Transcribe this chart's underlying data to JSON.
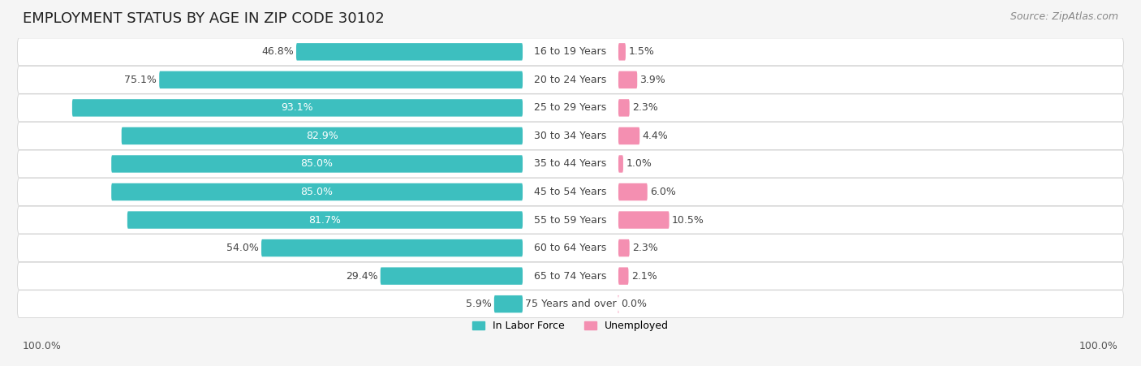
{
  "title": "EMPLOYMENT STATUS BY AGE IN ZIP CODE 30102",
  "source": "Source: ZipAtlas.com",
  "categories": [
    "16 to 19 Years",
    "20 to 24 Years",
    "25 to 29 Years",
    "30 to 34 Years",
    "35 to 44 Years",
    "45 to 54 Years",
    "55 to 59 Years",
    "60 to 64 Years",
    "65 to 74 Years",
    "75 Years and over"
  ],
  "labor_force": [
    46.8,
    75.1,
    93.1,
    82.9,
    85.0,
    85.0,
    81.7,
    54.0,
    29.4,
    5.9
  ],
  "unemployed": [
    1.5,
    3.9,
    2.3,
    4.4,
    1.0,
    6.0,
    10.5,
    2.3,
    2.1,
    0.0
  ],
  "labor_force_color": "#3dbfbf",
  "unemployed_color": "#f48fb1",
  "background_color": "#f5f5f5",
  "bar_background_color": "#ffffff",
  "title_fontsize": 13,
  "source_fontsize": 9,
  "label_fontsize": 9,
  "legend_label_labor": "In Labor Force",
  "legend_label_unemployed": "Unemployed",
  "x_left_label": "100.0%",
  "x_right_label": "100.0%",
  "max_value": 100
}
